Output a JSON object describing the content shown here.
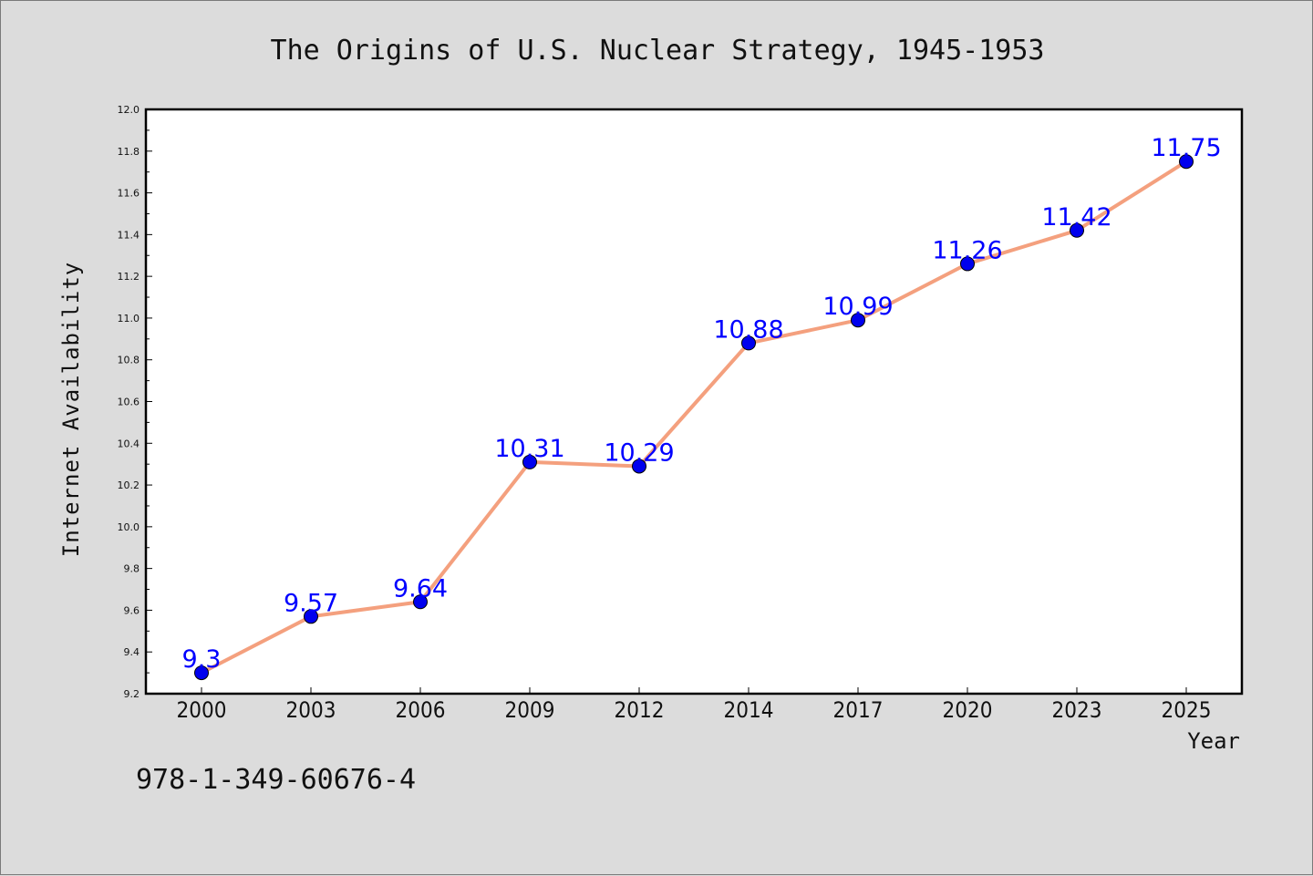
{
  "title": "The Origins of U.S. Nuclear Strategy, 1945-1953",
  "isbn": "978-1-349-60676-4",
  "chart_data": {
    "type": "line",
    "title": "The Origins of U.S. Nuclear Strategy, 1945-1953",
    "xlabel": "Year",
    "ylabel": "Internet Availability",
    "categories": [
      "2000",
      "2003",
      "2006",
      "2009",
      "2012",
      "2014",
      "2017",
      "2020",
      "2023",
      "2025"
    ],
    "series": [
      {
        "values": [
          9.3,
          9.57,
          9.64,
          10.31,
          10.29,
          10.88,
          10.99,
          11.26,
          11.42,
          11.75
        ],
        "data_labels": [
          "9.3",
          "9.57",
          "9.64",
          "10.31",
          "10.29",
          "10.88",
          "10.99",
          "11.26",
          "11.42",
          "11.75"
        ],
        "line_color": "#f4a07e",
        "marker_color": "#0000ee"
      }
    ],
    "ylim": [
      9.2,
      12.0
    ],
    "y_ticks": [
      "9.2",
      "9.4",
      "9.6",
      "9.8",
      "10.0",
      "10.2",
      "10.4",
      "10.6",
      "10.8",
      "11.0",
      "11.2",
      "11.4",
      "11.6",
      "11.8",
      "12.0"
    ],
    "grid": false,
    "legend": "none",
    "background": "#dcdcdc",
    "plot_background": "#ffffff"
  }
}
